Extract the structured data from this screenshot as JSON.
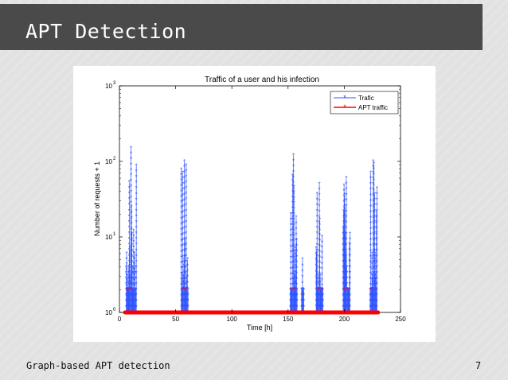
{
  "slide": {
    "title": "APT Detection",
    "footer": "Graph-based APT detection",
    "page_number": "7"
  },
  "chart_data": {
    "type": "line",
    "title": "Traffic of a user and his infection",
    "xlabel": "Time [h]",
    "ylabel": "Number of requests + 1",
    "xlim": [
      0,
      250
    ],
    "ylim_log10": [
      0,
      3
    ],
    "y_scale": "log",
    "xticks": [
      0,
      50,
      100,
      150,
      200,
      250
    ],
    "yticks": [
      {
        "value": 1,
        "base": "10",
        "exp": "0"
      },
      {
        "value": 10,
        "base": "10",
        "exp": "1"
      },
      {
        "value": 100,
        "base": "10",
        "exp": "2"
      },
      {
        "value": 1000,
        "base": "10",
        "exp": "3"
      }
    ],
    "legend_position": "top-right",
    "grid": false,
    "series": [
      {
        "name": "Trafic",
        "color": "#3355ff",
        "bursts": [
          {
            "start": 6,
            "end": 15,
            "peak": 150
          },
          {
            "start": 55,
            "end": 61,
            "peak": 100
          },
          {
            "start": 152,
            "end": 158,
            "peak": 120
          },
          {
            "start": 162,
            "end": 164,
            "peak": 5
          },
          {
            "start": 175,
            "end": 181,
            "peak": 50
          },
          {
            "start": 199,
            "end": 205,
            "peak": 60
          },
          {
            "start": 223,
            "end": 229,
            "peak": 100
          }
        ]
      },
      {
        "name": "APT traffic",
        "color": "#ff0000",
        "baseline_x": [
          5,
          230
        ],
        "baseline_y": 1,
        "markers": [
          {
            "x": 7,
            "y": 2
          },
          {
            "x": 10,
            "y": 2
          },
          {
            "x": 57,
            "y": 2
          },
          {
            "x": 59,
            "y": 2
          },
          {
            "x": 153,
            "y": 2
          },
          {
            "x": 156,
            "y": 2
          },
          {
            "x": 177,
            "y": 2
          },
          {
            "x": 180,
            "y": 2
          },
          {
            "x": 200,
            "y": 2
          },
          {
            "x": 203,
            "y": 2
          },
          {
            "x": 224,
            "y": 2
          }
        ]
      }
    ]
  }
}
